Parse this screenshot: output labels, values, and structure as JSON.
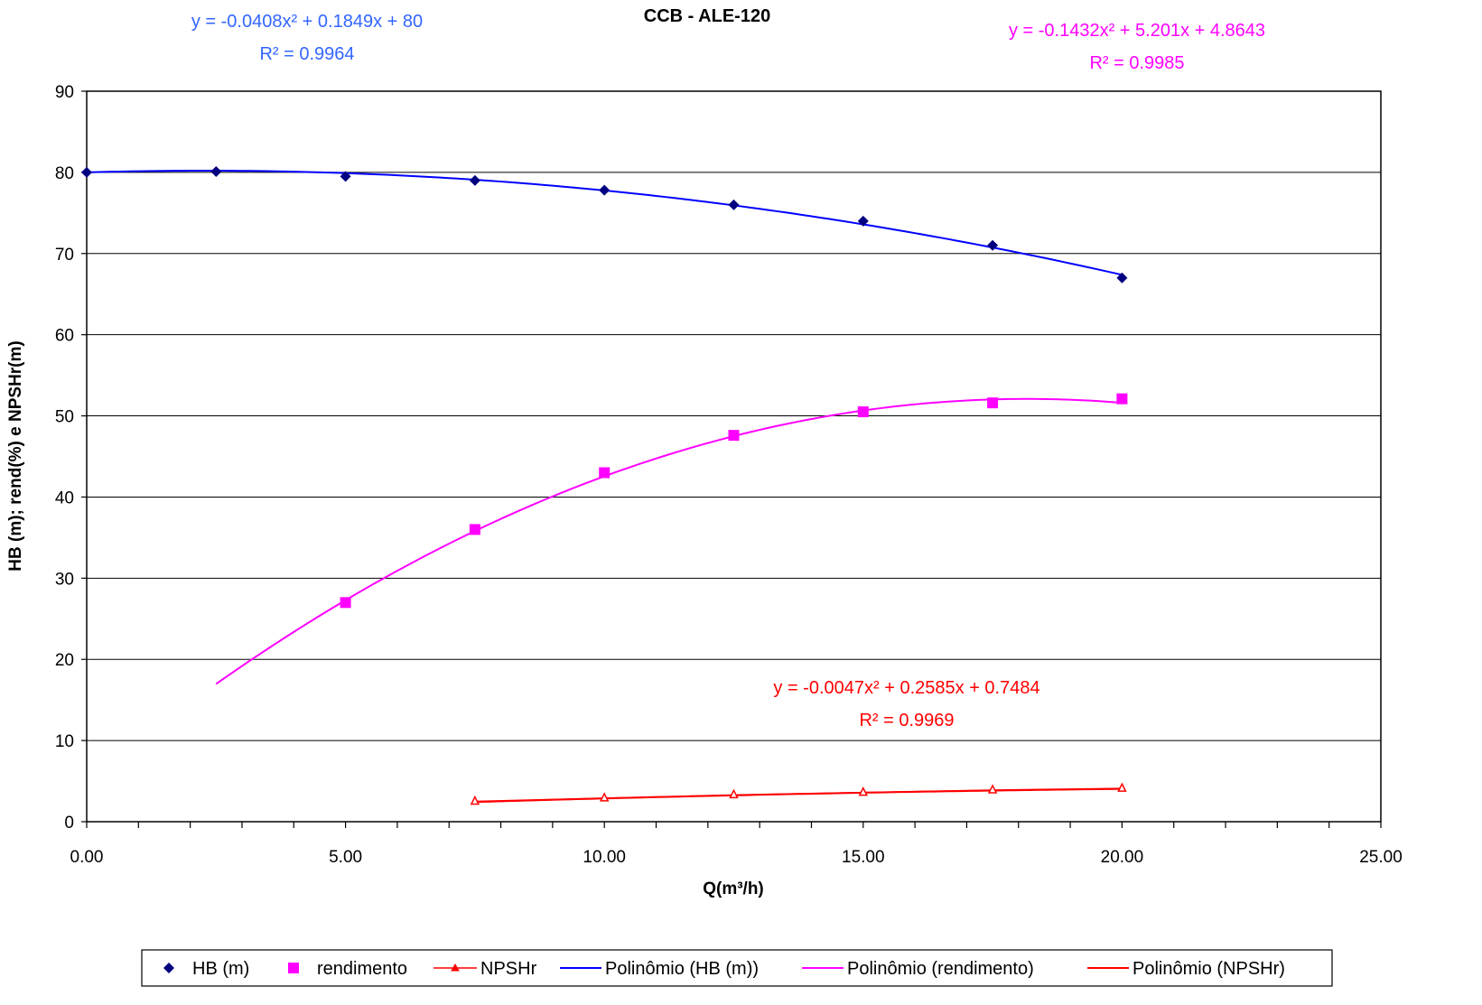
{
  "chart_data": {
    "type": "scatter",
    "title": "CCB - ALE-120",
    "xlabel": "Q(m³/h)",
    "ylabel": "HB (m); rend(%) e NPSHr(m)",
    "xlim": [
      0,
      25
    ],
    "ylim": [
      0,
      90
    ],
    "x_ticks": [
      "0.00",
      "5.00",
      "10.00",
      "15.00",
      "20.00",
      "25.00"
    ],
    "y_ticks": [
      "0",
      "10",
      "20",
      "30",
      "40",
      "50",
      "60",
      "70",
      "80",
      "90"
    ],
    "grid": "horizontal",
    "legend_position": "bottom",
    "series": [
      {
        "name": "HB (m)",
        "marker": "diamond",
        "color": "#000080",
        "x": [
          0,
          2.5,
          5,
          7.5,
          10,
          12.5,
          15,
          17.5,
          20
        ],
        "y": [
          80,
          80.1,
          79.5,
          79,
          77.8,
          76,
          74,
          71,
          67
        ]
      },
      {
        "name": "rendimento",
        "marker": "square",
        "color": "#FF00FF",
        "x": [
          5,
          7.5,
          10,
          12.5,
          15,
          17.5,
          20
        ],
        "y": [
          27,
          36,
          43,
          47.6,
          50.5,
          51.6,
          52.1
        ]
      },
      {
        "name": "NPSHr",
        "marker": "triangle",
        "color": "#FF0000",
        "x": [
          7.5,
          10,
          12.5,
          15,
          17.5,
          20
        ],
        "y": [
          2.5,
          2.9,
          3.3,
          3.6,
          3.9,
          4.1
        ]
      }
    ],
    "trendlines": [
      {
        "name": "Polinômio (HB (m))",
        "color": "#0000FF",
        "coeffs": [
          -0.0408,
          0.1849,
          80
        ],
        "x_range": [
          0,
          20
        ],
        "equation": "y = -0.0408x² + 0.1849x + 80",
        "r2": "R² = 0.9964",
        "label_color": "#3366FF"
      },
      {
        "name": "Polinômio (rendimento)",
        "color": "#FF00FF",
        "coeffs": [
          -0.1432,
          5.201,
          4.8643
        ],
        "x_range": [
          2.5,
          20
        ],
        "equation": "y = -0.1432x² + 5.201x + 4.8643",
        "r2": "R² = 0.9985",
        "label_color": "#FF00FF"
      },
      {
        "name": "Polinômio (NPSHr)",
        "color": "#FF0000",
        "coeffs": [
          -0.0047,
          0.2585,
          0.7484
        ],
        "x_range": [
          7.5,
          20
        ],
        "equation": "y = -0.0047x² + 0.2585x + 0.7484",
        "r2": "R² = 0.9969",
        "label_color": "#FF0000"
      }
    ]
  }
}
